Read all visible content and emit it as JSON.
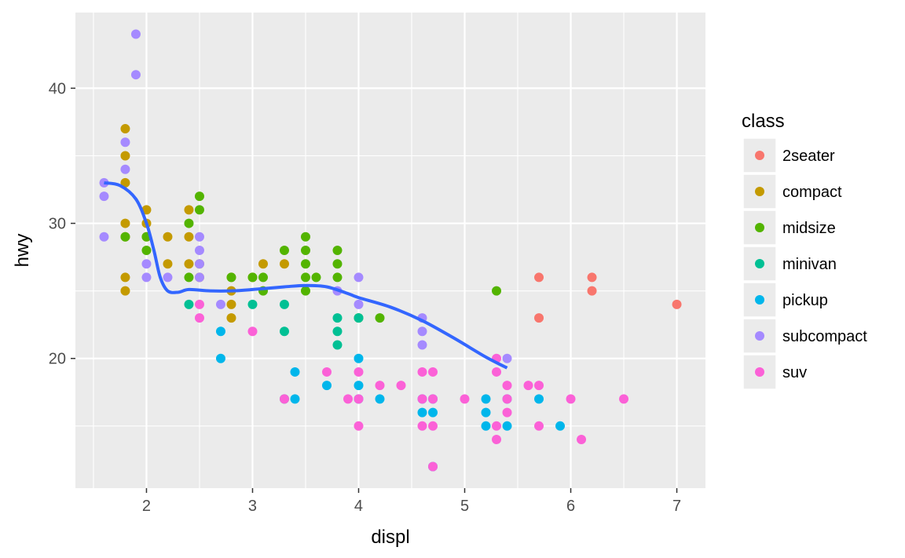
{
  "chart_data": {
    "type": "scatter",
    "title": "",
    "xlabel": "displ",
    "ylabel": "hwy",
    "xlim": [
      1.33,
      7.27
    ],
    "ylim": [
      10.4,
      45.6
    ],
    "x_ticks": [
      2,
      3,
      4,
      5,
      6,
      7
    ],
    "y_ticks": [
      20,
      30,
      40
    ],
    "grid": true,
    "legend_title": "class",
    "legend_position": "right",
    "series": [
      {
        "name": "2seater",
        "color": "#F8766D",
        "points": [
          [
            5.7,
            26
          ],
          [
            5.7,
            23
          ],
          [
            6.2,
            26
          ],
          [
            6.2,
            25
          ],
          [
            7.0,
            24
          ]
        ]
      },
      {
        "name": "compact",
        "color": "#C49A00",
        "points": [
          [
            1.8,
            37
          ],
          [
            1.8,
            35
          ],
          [
            1.8,
            33
          ],
          [
            1.8,
            30
          ],
          [
            1.8,
            29
          ],
          [
            1.8,
            26
          ],
          [
            1.8,
            25
          ],
          [
            2.0,
            31
          ],
          [
            2.0,
            30
          ],
          [
            2.0,
            29
          ],
          [
            2.2,
            29
          ],
          [
            2.2,
            27
          ],
          [
            2.4,
            31
          ],
          [
            2.4,
            29
          ],
          [
            2.4,
            27
          ],
          [
            2.5,
            27
          ],
          [
            2.5,
            26
          ],
          [
            2.8,
            26
          ],
          [
            2.8,
            25
          ],
          [
            2.8,
            24
          ],
          [
            2.8,
            23
          ],
          [
            3.0,
            26
          ],
          [
            3.1,
            27
          ],
          [
            3.3,
            27
          ]
        ]
      },
      {
        "name": "midsize",
        "color": "#53B400",
        "points": [
          [
            1.8,
            29
          ],
          [
            2.0,
            29
          ],
          [
            2.0,
            28
          ],
          [
            2.4,
            30
          ],
          [
            2.4,
            26
          ],
          [
            2.5,
            32
          ],
          [
            2.5,
            31
          ],
          [
            2.8,
            26
          ],
          [
            3.0,
            26
          ],
          [
            3.1,
            26
          ],
          [
            3.1,
            25
          ],
          [
            3.3,
            28
          ],
          [
            3.5,
            29
          ],
          [
            3.5,
            28
          ],
          [
            3.5,
            27
          ],
          [
            3.5,
            26
          ],
          [
            3.5,
            25
          ],
          [
            3.6,
            26
          ],
          [
            3.8,
            28
          ],
          [
            3.8,
            27
          ],
          [
            3.8,
            26
          ],
          [
            4.0,
            23
          ],
          [
            4.2,
            23
          ],
          [
            5.3,
            25
          ]
        ]
      },
      {
        "name": "minivan",
        "color": "#00C094",
        "points": [
          [
            2.4,
            24
          ],
          [
            3.0,
            24
          ],
          [
            3.3,
            24
          ],
          [
            3.3,
            22
          ],
          [
            3.3,
            17
          ],
          [
            3.8,
            23
          ],
          [
            3.8,
            22
          ],
          [
            3.8,
            21
          ],
          [
            4.0,
            23
          ]
        ]
      },
      {
        "name": "pickup",
        "color": "#00B6EB",
        "points": [
          [
            2.7,
            22
          ],
          [
            2.7,
            20
          ],
          [
            3.4,
            19
          ],
          [
            3.4,
            17
          ],
          [
            3.7,
            18
          ],
          [
            4.0,
            20
          ],
          [
            4.0,
            18
          ],
          [
            4.0,
            17
          ],
          [
            4.2,
            17
          ],
          [
            4.6,
            17
          ],
          [
            4.6,
            16
          ],
          [
            4.7,
            17
          ],
          [
            4.7,
            16
          ],
          [
            4.7,
            12
          ],
          [
            5.2,
            17
          ],
          [
            5.2,
            16
          ],
          [
            5.2,
            15
          ],
          [
            5.4,
            17
          ],
          [
            5.4,
            15
          ],
          [
            5.7,
            17
          ],
          [
            5.9,
            15
          ]
        ]
      },
      {
        "name": "subcompact",
        "color": "#A58AFF",
        "points": [
          [
            1.6,
            33
          ],
          [
            1.6,
            32
          ],
          [
            1.6,
            29
          ],
          [
            1.8,
            36
          ],
          [
            1.8,
            34
          ],
          [
            1.9,
            44
          ],
          [
            1.9,
            41
          ],
          [
            2.0,
            27
          ],
          [
            2.0,
            26
          ],
          [
            2.2,
            26
          ],
          [
            2.5,
            29
          ],
          [
            2.5,
            28
          ],
          [
            2.5,
            27
          ],
          [
            2.5,
            26
          ],
          [
            2.7,
            24
          ],
          [
            3.8,
            25
          ],
          [
            4.0,
            26
          ],
          [
            4.0,
            24
          ],
          [
            4.6,
            23
          ],
          [
            4.6,
            22
          ],
          [
            4.6,
            21
          ],
          [
            5.4,
            20
          ]
        ]
      },
      {
        "name": "suv",
        "color": "#FB61D7",
        "points": [
          [
            2.5,
            24
          ],
          [
            2.5,
            23
          ],
          [
            3.0,
            22
          ],
          [
            3.3,
            17
          ],
          [
            3.7,
            19
          ],
          [
            3.9,
            17
          ],
          [
            4.0,
            19
          ],
          [
            4.0,
            17
          ],
          [
            4.0,
            15
          ],
          [
            4.2,
            18
          ],
          [
            4.4,
            18
          ],
          [
            4.6,
            19
          ],
          [
            4.6,
            17
          ],
          [
            4.6,
            15
          ],
          [
            4.7,
            19
          ],
          [
            4.7,
            17
          ],
          [
            4.7,
            15
          ],
          [
            4.7,
            12
          ],
          [
            5.0,
            17
          ],
          [
            5.3,
            20
          ],
          [
            5.3,
            19
          ],
          [
            5.3,
            15
          ],
          [
            5.3,
            14
          ],
          [
            5.4,
            18
          ],
          [
            5.4,
            17
          ],
          [
            5.4,
            16
          ],
          [
            5.6,
            18
          ],
          [
            5.7,
            18
          ],
          [
            5.7,
            15
          ],
          [
            6.0,
            17
          ],
          [
            6.1,
            14
          ],
          [
            6.5,
            17
          ]
        ]
      }
    ],
    "smooth": {
      "color": "#3366FF",
      "points": [
        [
          1.6,
          33.0
        ],
        [
          1.75,
          32.8
        ],
        [
          1.9,
          31.8
        ],
        [
          2.0,
          30.0
        ],
        [
          2.07,
          28.0
        ],
        [
          2.13,
          26.0
        ],
        [
          2.2,
          25.0
        ],
        [
          2.3,
          24.9
        ],
        [
          2.4,
          25.1
        ],
        [
          2.6,
          25.0
        ],
        [
          2.8,
          25.0
        ],
        [
          3.0,
          25.1
        ],
        [
          3.3,
          25.3
        ],
        [
          3.5,
          25.4
        ],
        [
          3.7,
          25.3
        ],
        [
          3.9,
          24.8
        ],
        [
          4.0,
          24.5
        ],
        [
          4.3,
          23.8
        ],
        [
          4.6,
          22.8
        ],
        [
          4.9,
          21.5
        ],
        [
          5.2,
          20.1
        ],
        [
          5.4,
          19.3
        ]
      ]
    }
  }
}
